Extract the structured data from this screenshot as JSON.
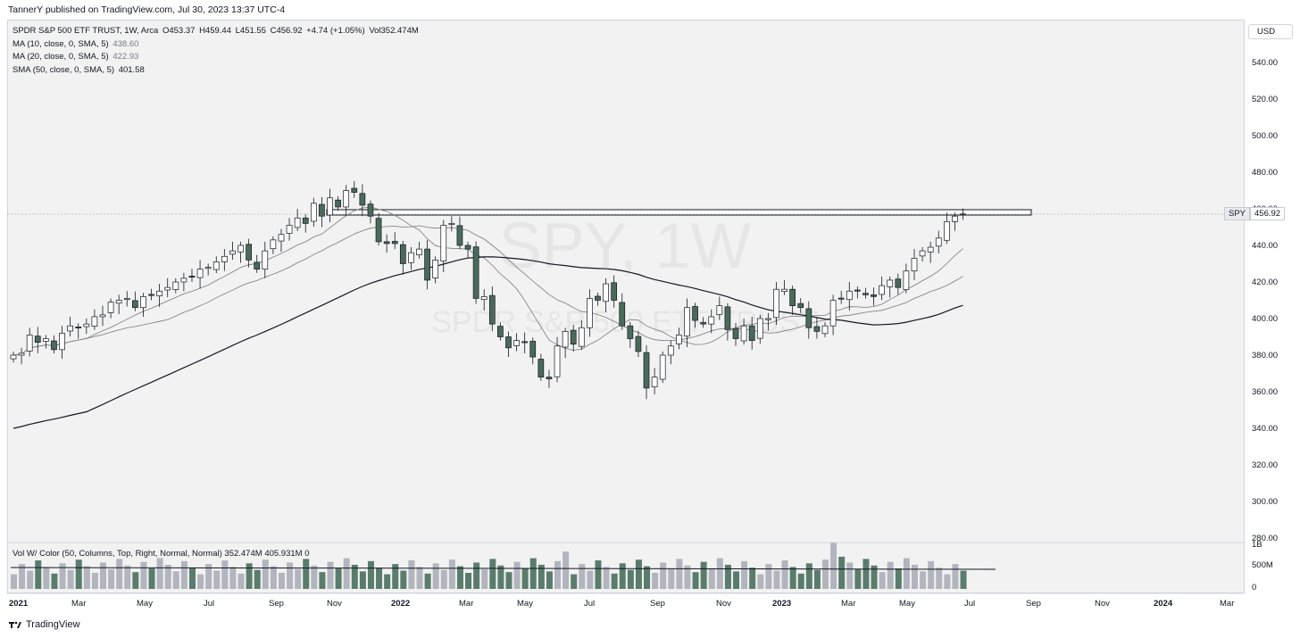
{
  "header": {
    "published_text": "TannerY published on TradingView.com, Jul 30, 2023 13:37 UTC-4"
  },
  "legend": {
    "symbol_line": "SPDR S&P 500 ETF TRUST, 1W, Arca",
    "o": "O453.37",
    "h": "H459.44",
    "l": "L451.55",
    "c": "C456.92",
    "chg": "+4.74 (+1.05%)",
    "vol": "Vol352.474M",
    "ma10_label": "MA (10, close, 0, SMA, 5)",
    "ma10_value": "438.60",
    "ma20_label": "MA (20, close, 0, SMA, 5)",
    "ma20_value": "422.93",
    "sma50_label": "SMA (50, close, 0, SMA, 5)",
    "sma50_value": "401.58"
  },
  "currency_button": "USD",
  "watermark": {
    "ticker": "SPY, 1W",
    "name": "SPDR S&P 500 ETF TRUST"
  },
  "price_tag": {
    "symbol": "SPY",
    "price": "456.92"
  },
  "volume_legend": {
    "label": "Vol W/ Color (50, Columns, Top, Right, Normal, Normal)",
    "v1": "352.474M",
    "v2": "405.931M",
    "v3": "0"
  },
  "price_axis": [
    "540.00",
    "520.00",
    "500.00",
    "480.00",
    "460.00",
    "440.00",
    "420.00",
    "400.00",
    "380.00",
    "360.00",
    "340.00",
    "320.00",
    "300.00",
    "280.00"
  ],
  "volume_axis": [
    "1B",
    "500M",
    "0"
  ],
  "time_axis": [
    "2021",
    "Mar",
    "May",
    "Jul",
    "Sep",
    "Nov",
    "2022",
    "Mar",
    "May",
    "Jul",
    "Sep",
    "Nov",
    "2023",
    "Mar",
    "May",
    "Jul",
    "Sep",
    "Nov",
    "2024",
    "Mar"
  ],
  "footer": {
    "brand": "TradingView"
  },
  "colors": {
    "up_candle": "#ffffff",
    "down_candle": "#4a6b5b",
    "wick": "#131722",
    "ma_line": "#7a7a7a",
    "sma50_line": "#131722",
    "vol_up": "#b2b5be",
    "vol_down": "#5a7c6c"
  },
  "chart_data": {
    "type": "candlestick",
    "ticker": "SPY",
    "interval": "1W",
    "ylim": [
      280,
      550
    ],
    "resistance_level": [
      456,
      460
    ],
    "series_close_approx": [
      380,
      381,
      391,
      387,
      389,
      383,
      392,
      396,
      395,
      397,
      401,
      402,
      409,
      410,
      411,
      406,
      412,
      413,
      415,
      417,
      420,
      422,
      423,
      427,
      428,
      431,
      434,
      437,
      440,
      432,
      427,
      437,
      443,
      446,
      451,
      455,
      452,
      463,
      456,
      466,
      461,
      470,
      469,
      462,
      456,
      442,
      441,
      441,
      430,
      436,
      438,
      421,
      432,
      451,
      452,
      440,
      438,
      411,
      412,
      397,
      390,
      384,
      388,
      387,
      379,
      368,
      367,
      385,
      393,
      386,
      395,
      411,
      410,
      419,
      410,
      396,
      389,
      382,
      362,
      368,
      380,
      385,
      391,
      406,
      399,
      397,
      401,
      407,
      394,
      389,
      396,
      388,
      400,
      400,
      416,
      416,
      407,
      406,
      395,
      393,
      396,
      410,
      411,
      415,
      415,
      413,
      412,
      418,
      421,
      417,
      426,
      433,
      437,
      439,
      444,
      453,
      456,
      457
    ],
    "volume_unit": "M",
    "last_volume": 352.474,
    "volume_ma": 405.931,
    "ma10_last": 438.6,
    "ma20_last": 422.93,
    "sma50_last": 401.58
  }
}
